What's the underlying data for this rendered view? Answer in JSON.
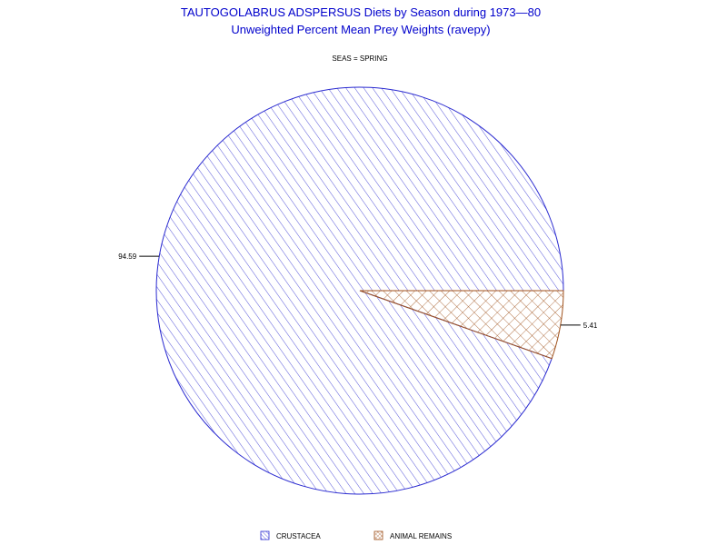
{
  "chart_data": {
    "type": "pie",
    "title": "TAUTOGOLABRUS ADSPERSUS Diets by Season during 1973—80",
    "subtitle": "Unweighted Percent Mean Prey Weights (ravepy)",
    "group_label": "SEAS = SPRING",
    "slices": [
      {
        "name": "CRUSTACEA",
        "value": 94.59,
        "label": "94.59",
        "color": "#2a2ad0",
        "pattern": "diagonal-hatch"
      },
      {
        "name": "ANIMAL REMAINS",
        "value": 5.41,
        "label": "5.41",
        "color": "#a0521d",
        "pattern": "cross-hatch"
      }
    ],
    "legend_position": "bottom"
  }
}
